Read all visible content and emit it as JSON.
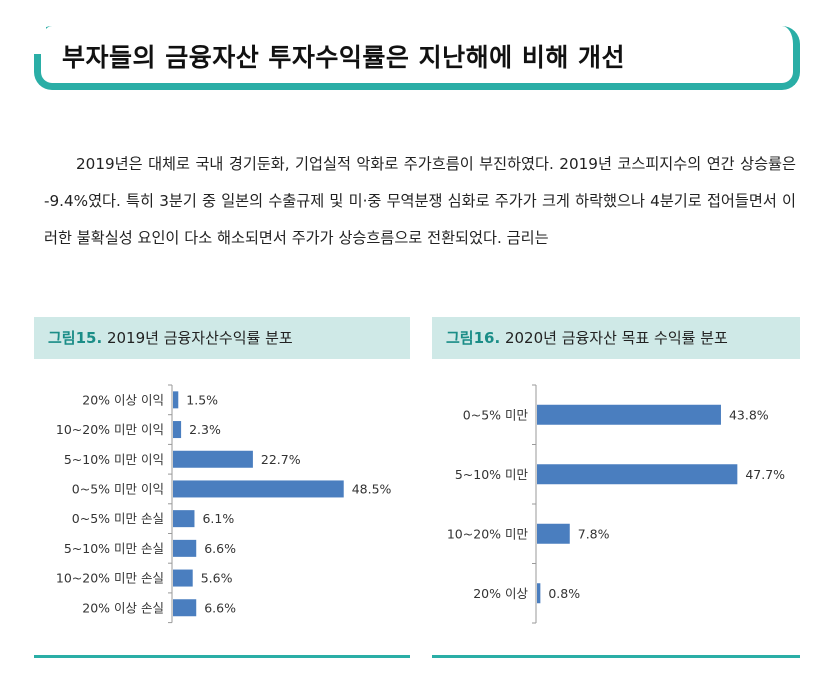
{
  "title": "부자들의 금융자산 투자수익률은 지난해에 비해 개선",
  "paragraph": "2019년은 대체로 국내 경기둔화, 기업실적 악화로 주가흐름이 부진하였다. 2019년 코스피지수의 연간 상승률은 -9.4%였다. 특히 3분기 중 일본의 수출규제 및 미·중 무역분쟁 심화로 주가가 크게 하락했으나 4분기로 접어들면서 이러한 불확실성 요인이 다소 해소되면서 주가가 상승흐름으로 전환되었다. 금리는",
  "figures": {
    "fig15": {
      "number": "그림15.",
      "caption": "2019년 금융자산수익률 분포"
    },
    "fig16": {
      "number": "그림16.",
      "caption": "2020년 금융자산 목표 수익률 분포"
    }
  },
  "colors": {
    "bar": "#4a7ebf",
    "accent": "#2aaea6",
    "header_bg": "#cfe9e7",
    "axis": "#9a9a9a"
  },
  "chart_data": [
    {
      "type": "bar",
      "orientation": "horizontal",
      "title": "2019년 금융자산수익률 분포",
      "categories": [
        "20% 이상 이익",
        "10~20% 미만 이익",
        "5~10% 미만 이익",
        "0~5% 미만 이익",
        "0~5% 미만 손실",
        "5~10% 미만 손실",
        "10~20% 미만 손실",
        "20% 이상 손실"
      ],
      "values": [
        1.5,
        2.3,
        22.7,
        48.5,
        6.1,
        6.6,
        5.6,
        6.6
      ],
      "labels": [
        "1.5%",
        "2.3%",
        "22.7%",
        "48.5%",
        "6.1%",
        "6.6%",
        "5.6%",
        "6.6%"
      ],
      "xlim": [
        0,
        50
      ]
    },
    {
      "type": "bar",
      "orientation": "horizontal",
      "title": "2020년 금융자산 목표 수익률 분포",
      "categories": [
        "0~5% 미만",
        "5~10% 미만",
        "10~20% 미만",
        "20% 이상"
      ],
      "values": [
        43.8,
        47.7,
        7.8,
        0.8
      ],
      "labels": [
        "43.8%",
        "47.7%",
        "7.8%",
        "0.8%"
      ],
      "xlim": [
        0,
        50
      ]
    }
  ]
}
